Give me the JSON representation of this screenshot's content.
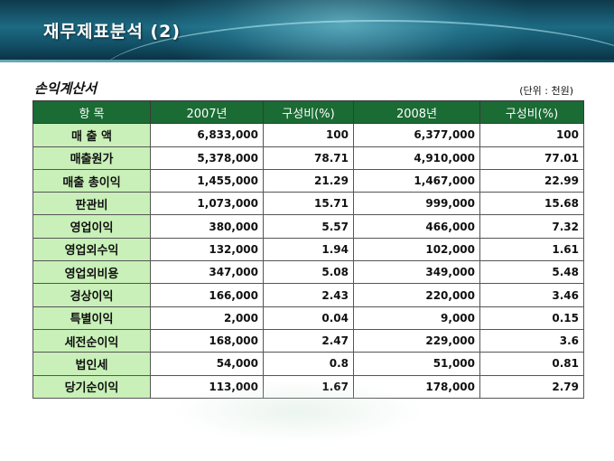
{
  "header": {
    "title": "재무제표분석 (2)"
  },
  "section": {
    "title": "손익계산서",
    "unit": "(단위 : 천원)"
  },
  "table": {
    "columns": [
      "항  목",
      "2007년",
      "구성비(%)",
      "2008년",
      "구성비(%)"
    ],
    "rows": [
      [
        "매 출 액",
        "6,833,000",
        "100",
        "6,377,000",
        "100"
      ],
      [
        "매출원가",
        "5,378,000",
        "78.71",
        "4,910,000",
        "77.01"
      ],
      [
        "매출 총이익",
        "1,455,000",
        "21.29",
        "1,467,000",
        "22.99"
      ],
      [
        "판관비",
        "1,073,000",
        "15.71",
        "999,000",
        "15.68"
      ],
      [
        "영업이익",
        "380,000",
        "5.57",
        "466,000",
        "7.32"
      ],
      [
        "영업외수익",
        "132,000",
        "1.94",
        "102,000",
        "1.61"
      ],
      [
        "영업외비용",
        "347,000",
        "5.08",
        "349,000",
        "5.48"
      ],
      [
        "경상이익",
        "166,000",
        "2.43",
        "220,000",
        "3.46"
      ],
      [
        "특별이익",
        "2,000",
        "0.04",
        "9,000",
        "0.15"
      ],
      [
        "세전순이익",
        "168,000",
        "2.47",
        "229,000",
        "3.6"
      ],
      [
        "법인세",
        "54,000",
        "0.8",
        "51,000",
        "0.81"
      ],
      [
        "당기순이익",
        "113,000",
        "1.67",
        "178,000",
        "2.79"
      ]
    ]
  },
  "colors": {
    "header_bg": "#1c6a82",
    "table_header_bg": "#1b6b34",
    "item_cell_bg": "#c8f0b8"
  }
}
